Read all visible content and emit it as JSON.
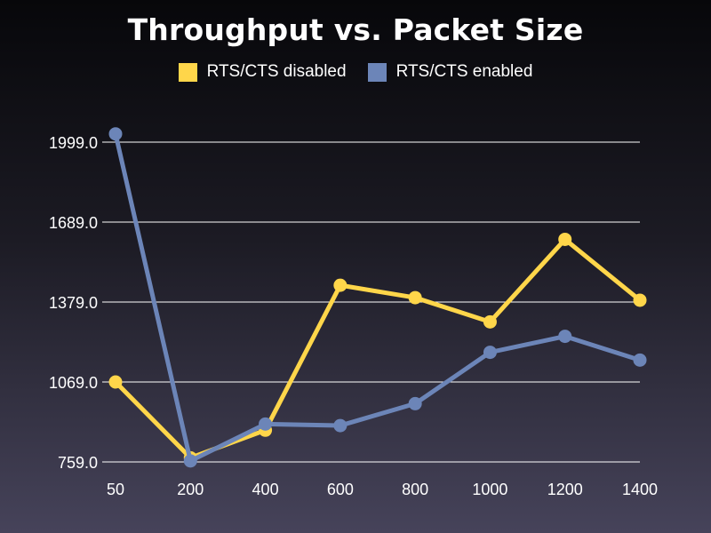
{
  "chart_data": {
    "type": "line",
    "title": "Throughput vs. Packet Size",
    "xlabel": "",
    "ylabel": "",
    "categories": [
      "50",
      "200",
      "400",
      "600",
      "800",
      "1000",
      "1200",
      "1400"
    ],
    "y_ticks": [
      "759.0",
      "1069.0",
      "1379.0",
      "1689.0",
      "1999.0"
    ],
    "y_tick_values": [
      759,
      1069,
      1379,
      1689,
      1999
    ],
    "ylim": [
      759,
      1999
    ],
    "grid": "horizontal",
    "legend_position": "top",
    "series": [
      {
        "name": "RTS/CTS disabled",
        "color": "#ffd64a",
        "values": [
          1069,
          775,
          882,
          1444,
          1396,
          1302,
          1622,
          1386
        ]
      },
      {
        "name": "RTS/CTS enabled",
        "color": "#6c85b8",
        "values": [
          2031,
          763,
          906,
          900,
          985,
          1184,
          1246,
          1154
        ]
      }
    ]
  }
}
